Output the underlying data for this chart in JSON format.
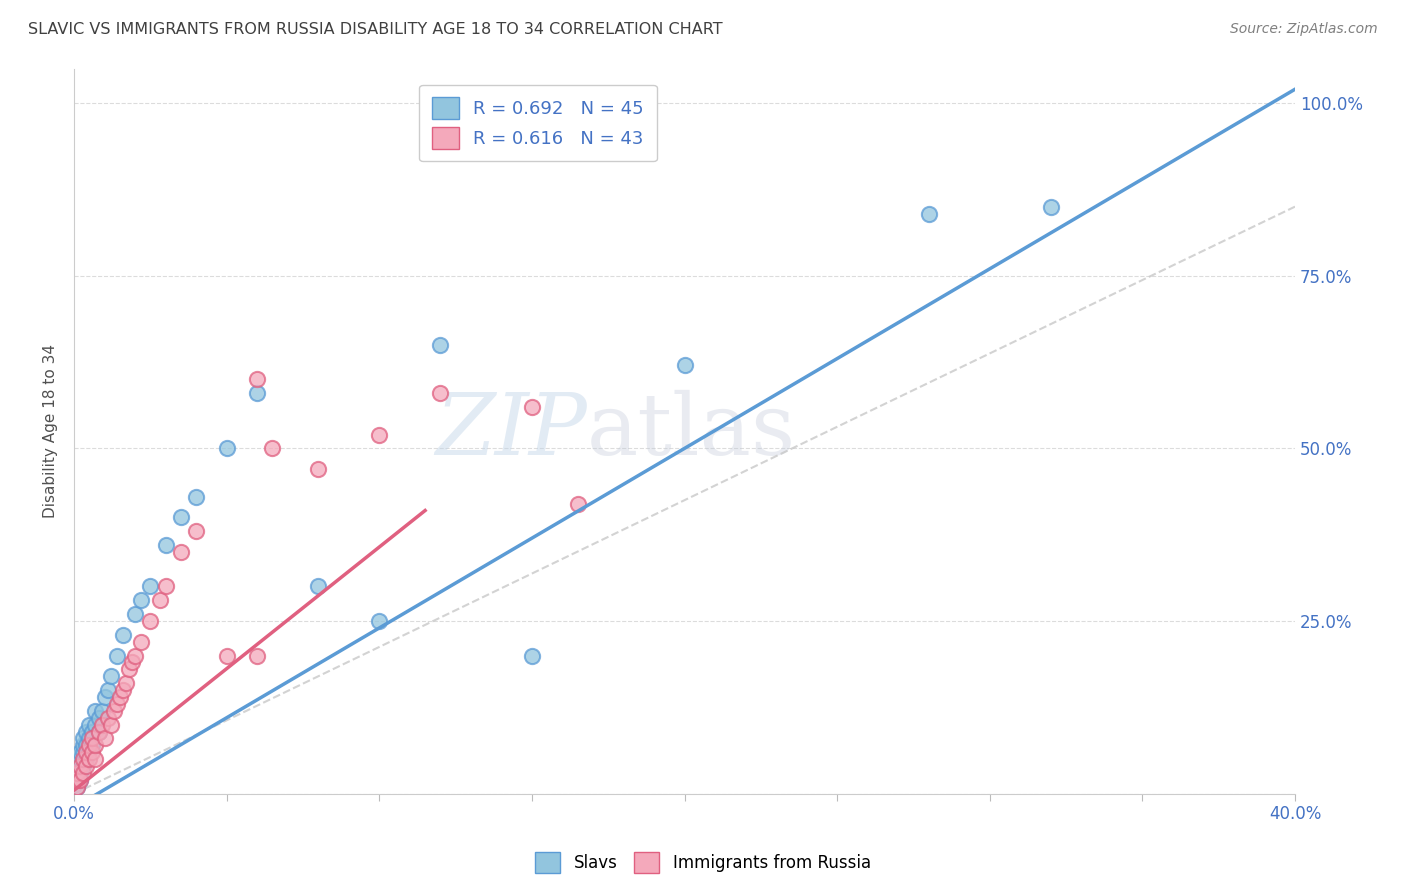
{
  "title": "SLAVIC VS IMMIGRANTS FROM RUSSIA DISABILITY AGE 18 TO 34 CORRELATION CHART",
  "source": "Source: ZipAtlas.com",
  "ylabel": "Disability Age 18 to 34",
  "xlim": [
    0.0,
    0.4
  ],
  "ylim": [
    0.0,
    1.05
  ],
  "y_ticks": [
    0.0,
    0.25,
    0.5,
    0.75,
    1.0
  ],
  "y_tick_labels": [
    "",
    "25.0%",
    "50.0%",
    "75.0%",
    "100.0%"
  ],
  "x_ticks": [
    0.0,
    0.05,
    0.1,
    0.15,
    0.2,
    0.25,
    0.3,
    0.35,
    0.4
  ],
  "x_tick_labels_show": [
    "0.0%",
    "",
    "",
    "",
    "",
    "",
    "",
    "",
    "40.0%"
  ],
  "color_slavs": "#92C5DE",
  "color_russia": "#F4A9BB",
  "color_line_slavs": "#5B9BD5",
  "color_line_russia": "#E06080",
  "color_diag": "#C8C8C8",
  "color_text_blue": "#4472C4",
  "color_title": "#404040",
  "watermark_zip": "ZIP",
  "watermark_atlas": "atlas",
  "background_color": "#FFFFFF",
  "grid_color": "#DCDCDC",
  "slavs_x": [
    0.001,
    0.001,
    0.001,
    0.001,
    0.002,
    0.002,
    0.002,
    0.002,
    0.003,
    0.003,
    0.003,
    0.003,
    0.004,
    0.004,
    0.004,
    0.005,
    0.005,
    0.005,
    0.006,
    0.006,
    0.007,
    0.007,
    0.008,
    0.008,
    0.009,
    0.01,
    0.011,
    0.012,
    0.014,
    0.016,
    0.02,
    0.022,
    0.025,
    0.03,
    0.035,
    0.04,
    0.05,
    0.06,
    0.08,
    0.1,
    0.12,
    0.15,
    0.2,
    0.28,
    0.32
  ],
  "slavs_y": [
    0.01,
    0.02,
    0.03,
    0.04,
    0.02,
    0.03,
    0.05,
    0.06,
    0.04,
    0.06,
    0.07,
    0.08,
    0.05,
    0.07,
    0.09,
    0.06,
    0.08,
    0.1,
    0.07,
    0.09,
    0.1,
    0.12,
    0.09,
    0.11,
    0.12,
    0.14,
    0.15,
    0.17,
    0.2,
    0.23,
    0.26,
    0.28,
    0.3,
    0.36,
    0.4,
    0.43,
    0.5,
    0.58,
    0.3,
    0.25,
    0.65,
    0.2,
    0.62,
    0.84,
    0.85
  ],
  "russia_x": [
    0.001,
    0.001,
    0.001,
    0.002,
    0.002,
    0.003,
    0.003,
    0.004,
    0.004,
    0.005,
    0.005,
    0.006,
    0.006,
    0.007,
    0.007,
    0.008,
    0.009,
    0.01,
    0.011,
    0.012,
    0.013,
    0.014,
    0.015,
    0.016,
    0.017,
    0.018,
    0.019,
    0.02,
    0.022,
    0.025,
    0.028,
    0.03,
    0.035,
    0.04,
    0.05,
    0.06,
    0.08,
    0.1,
    0.12,
    0.15,
    0.165,
    0.06,
    0.065
  ],
  "russia_y": [
    0.01,
    0.02,
    0.03,
    0.02,
    0.04,
    0.03,
    0.05,
    0.04,
    0.06,
    0.05,
    0.07,
    0.06,
    0.08,
    0.05,
    0.07,
    0.09,
    0.1,
    0.08,
    0.11,
    0.1,
    0.12,
    0.13,
    0.14,
    0.15,
    0.16,
    0.18,
    0.19,
    0.2,
    0.22,
    0.25,
    0.28,
    0.3,
    0.35,
    0.38,
    0.2,
    0.2,
    0.47,
    0.52,
    0.58,
    0.56,
    0.42,
    0.6,
    0.5
  ],
  "blue_line_x": [
    0.0,
    0.4
  ],
  "blue_line_y": [
    -0.02,
    1.02
  ],
  "pink_line_x": [
    0.0,
    0.115
  ],
  "pink_line_y": [
    0.005,
    0.41
  ]
}
